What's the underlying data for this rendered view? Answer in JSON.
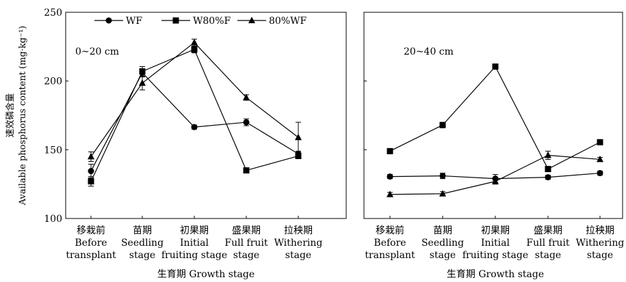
{
  "chart_data": [
    {
      "type": "line",
      "annotation": "0~20 cm",
      "ylabel_cn": "速效磷含量",
      "ylabel": "Available phosphorus content (mg·kg⁻¹)",
      "xlabel": "生育期 Growth stage",
      "ylim": [
        100,
        250
      ],
      "yticks": [
        "100",
        "150",
        "200",
        "250"
      ],
      "categories": [
        {
          "cn": "移栽前",
          "en1": "Before",
          "en2": "transplant"
        },
        {
          "cn": "苗期",
          "en1": "Seedling",
          "en2": "stage"
        },
        {
          "cn": "初果期",
          "en1": "Initial",
          "en2": "fruiting stage"
        },
        {
          "cn": "盛果期",
          "en1": "Full fruit",
          "en2": "stage"
        },
        {
          "cn": "拉秧期",
          "en1": "Withering",
          "en2": "stage"
        }
      ],
      "series": [
        {
          "name": "WF",
          "marker": "circle",
          "values": [
            134.5,
            206.0,
            166.5,
            170.0,
            147.0
          ],
          "errors": [
            5,
            3,
            1.5,
            2.5,
            2
          ]
        },
        {
          "name": "W80%F",
          "marker": "square",
          "values": [
            127.0,
            207.0,
            223.0,
            135.0,
            145.5
          ],
          "errors": [
            3.5,
            3.5,
            2.5,
            1.5,
            2
          ]
        },
        {
          "name": "80%WF",
          "marker": "triangle",
          "values": [
            145.0,
            198.5,
            228.0,
            188.0,
            159.0
          ],
          "errors": [
            3.5,
            5,
            2.5,
            2,
            11
          ]
        }
      ]
    },
    {
      "type": "line",
      "annotation": "20~40 cm",
      "xlabel": "生育期 Growth stage",
      "ylim": [
        100,
        250
      ],
      "categories": [
        {
          "cn": "移栽前",
          "en1": "Before",
          "en2": "transplant"
        },
        {
          "cn": "苗期",
          "en1": "Seedling",
          "en2": "stage"
        },
        {
          "cn": "初果期",
          "en1": "Initial",
          "en2": "fruiting stage"
        },
        {
          "cn": "盛果期",
          "en1": "Full fruit",
          "en2": "stage"
        },
        {
          "cn": "拉秧期",
          "en1": "Withering",
          "en2": "stage"
        }
      ],
      "series": [
        {
          "name": "WF",
          "marker": "circle",
          "values": [
            130.5,
            131.0,
            129.0,
            130.0,
            133.0
          ],
          "errors": [
            1.5,
            2,
            3,
            1.5,
            1.5
          ]
        },
        {
          "name": "W80%F",
          "marker": "square",
          "values": [
            149.0,
            168.0,
            210.5,
            136.0,
            155.5
          ],
          "errors": [
            1.5,
            2,
            1.5,
            2,
            1.5
          ]
        },
        {
          "name": "80%WF",
          "marker": "triangle",
          "values": [
            117.5,
            118.0,
            127.0,
            146.0,
            143.0
          ],
          "errors": [
            1.5,
            1.5,
            2,
            3,
            1.5
          ]
        }
      ]
    }
  ]
}
